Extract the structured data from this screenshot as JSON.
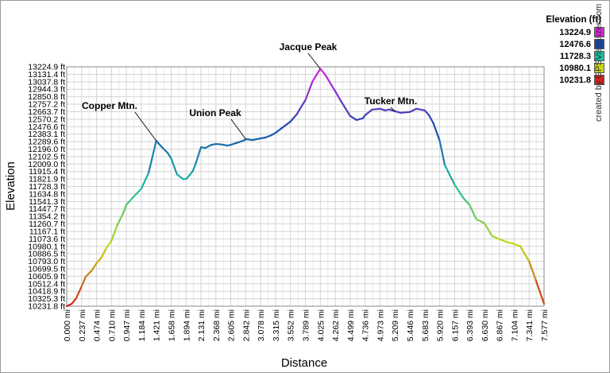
{
  "chart_data": {
    "type": "line",
    "xlabel": "Distance",
    "ylabel": "Elevation",
    "x_unit": "mi",
    "y_unit": "ft",
    "xlim": [
      0.0,
      7.577
    ],
    "ylim": [
      10231.8,
      13224.9
    ],
    "grid": true,
    "x_ticks": [
      "0.000 mi",
      "0.237 mi",
      "0.474 mi",
      "0.710 mi",
      "0.947 mi",
      "1.184 mi",
      "1.421 mi",
      "1.658 mi",
      "1.894 mi",
      "2.131 mi",
      "2.368 mi",
      "2.605 mi",
      "2.842 mi",
      "3.078 mi",
      "3.315 mi",
      "3.552 mi",
      "3.789 mi",
      "4.025 mi",
      "4.262 mi",
      "4.499 mi",
      "4.736 mi",
      "4.973 mi",
      "5.209 mi",
      "5.446 mi",
      "5.683 mi",
      "5.920 mi",
      "6.157 mi",
      "6.393 mi",
      "6.630 mi",
      "6.867 mi",
      "7.104 mi",
      "7.341 mi",
      "7.577 mi"
    ],
    "y_ticks": [
      "13224.9 ft",
      "13131.4 ft",
      "13037.8 ft",
      "12944.3 ft",
      "12850.8 ft",
      "12757.2 ft",
      "12663.7 ft",
      "12570.2 ft",
      "12476.6 ft",
      "12383.1 ft",
      "12289.6 ft",
      "12196.0 ft",
      "12102.5 ft",
      "12009.0 ft",
      "11915.4 ft",
      "11821.9 ft",
      "11728.3 ft",
      "11634.8 ft",
      "11541.3 ft",
      "11447.7 ft",
      "11354.2 ft",
      "11260.7 ft",
      "11167.1 ft",
      "11073.6 ft",
      "10980.1 ft",
      "10886.5 ft",
      "10793.0 ft",
      "10699.5 ft",
      "10605.9 ft",
      "10512.4 ft",
      "10418.9 ft",
      "10325.3 ft",
      "10231.8 ft"
    ],
    "series": [
      {
        "x": [
          0.0,
          0.08,
          0.15,
          0.237,
          0.3,
          0.4,
          0.474,
          0.55,
          0.63,
          0.71,
          0.8,
          0.9,
          0.947,
          1.05,
          1.184,
          1.3,
          1.421,
          1.5,
          1.6,
          1.658,
          1.75,
          1.85,
          1.9,
          1.95,
          2.0,
          2.05,
          2.131,
          2.2,
          2.3,
          2.368,
          2.45,
          2.55,
          2.605,
          2.7,
          2.8,
          2.842,
          2.95,
          3.078,
          3.15,
          3.25,
          3.315,
          3.4,
          3.552,
          3.65,
          3.789,
          3.9,
          4.025,
          4.1,
          4.2,
          4.262,
          4.35,
          4.499,
          4.6,
          4.7,
          4.736,
          4.85,
          4.973,
          5.05,
          5.12,
          5.209,
          5.3,
          5.446,
          5.55,
          5.683,
          5.75,
          5.82,
          5.92,
          6.0,
          6.157,
          6.3,
          6.393,
          6.5,
          6.63,
          6.75,
          6.867,
          7.0,
          7.104,
          7.2,
          7.341,
          7.45,
          7.577
        ],
        "y": [
          10232,
          10262,
          10330,
          10480,
          10600,
          10680,
          10770,
          10840,
          10960,
          11050,
          11240,
          11400,
          11500,
          11590,
          11700,
          11900,
          12300,
          12230,
          12150,
          12080,
          11880,
          11820,
          11825,
          11870,
          11920,
          12020,
          12220,
          12210,
          12250,
          12260,
          12255,
          12240,
          12250,
          12275,
          12300,
          12320,
          12310,
          12330,
          12340,
          12370,
          12400,
          12450,
          12540,
          12630,
          12810,
          13040,
          13200,
          13130,
          13000,
          12920,
          12800,
          12610,
          12560,
          12580,
          12620,
          12690,
          12700,
          12680,
          12690,
          12670,
          12650,
          12660,
          12700,
          12680,
          12620,
          12520,
          12300,
          12000,
          11750,
          11580,
          11500,
          11320,
          11270,
          11110,
          11070,
          11030,
          11010,
          10980,
          10790,
          10550,
          10260
        ]
      }
    ],
    "peaks": [
      {
        "label": "Copper Mtn.",
        "x": 1.421,
        "y": 12300
      },
      {
        "label": "Union Peak",
        "x": 2.842,
        "y": 12320
      },
      {
        "label": "Jacque Peak",
        "x": 4.025,
        "y": 13200
      },
      {
        "label": "Tucker Mtn.",
        "x": 5.209,
        "y": 12670
      }
    ]
  },
  "legend": {
    "title": "Elevation (ft)",
    "entries": [
      {
        "value": "13224.9",
        "color": "#e020e0"
      },
      {
        "value": "12476.6",
        "color": "#1848b0"
      },
      {
        "value": "11728.3",
        "color": "#18c0a0"
      },
      {
        "value": "10980.1",
        "color": "#c8d810"
      },
      {
        "value": "10231.8",
        "color": "#d02020"
      }
    ]
  },
  "credit": "created by GPSVisualizer.com"
}
